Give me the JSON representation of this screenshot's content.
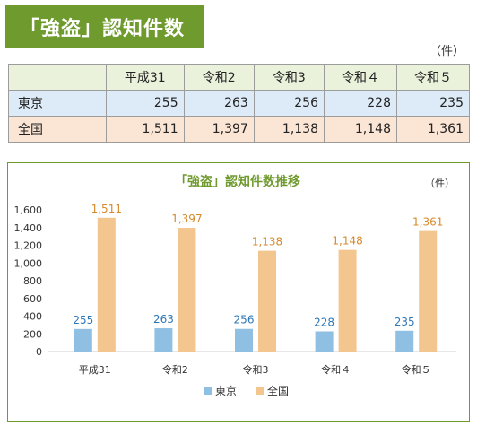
{
  "header": {
    "title": "「強盗」認知件数",
    "unit": "（件）"
  },
  "table": {
    "columns": [
      "平成31",
      "令和2",
      "令和3",
      "令和４",
      "令和５"
    ],
    "rows": [
      {
        "label": "東京",
        "values": [
          "255",
          "263",
          "256",
          "228",
          "235"
        ]
      },
      {
        "label": "全国",
        "values": [
          "1,511",
          "1,397",
          "1,138",
          "1,148",
          "1,361"
        ]
      }
    ]
  },
  "chart_data": {
    "type": "bar",
    "title": "「強盗」認知件数推移",
    "unit": "（件）",
    "categories": [
      "平成31",
      "令和2",
      "令和3",
      "令和４",
      "令和５"
    ],
    "series": [
      {
        "name": "東京",
        "values": [
          255,
          263,
          256,
          228,
          235
        ],
        "labels": [
          "255",
          "263",
          "256",
          "228",
          "235"
        ],
        "color": "#8fc0e3"
      },
      {
        "name": "全国",
        "values": [
          1511,
          1397,
          1138,
          1148,
          1361
        ],
        "labels": [
          "1,511",
          "1,397",
          "1,138",
          "1,148",
          "1,361"
        ],
        "color": "#f3c58f"
      }
    ],
    "ylim": [
      0,
      1600
    ],
    "yticks": [
      "0",
      "200",
      "400",
      "600",
      "800",
      "1,000",
      "1,200",
      "1,400",
      "1,600"
    ],
    "grid": false,
    "legend": "bottom"
  },
  "colors": {
    "accent_green": "#6f9a2e",
    "tokyo_bar": "#8fc0e3",
    "national_bar": "#f3c58f",
    "tokyo_label": "#2f78b7",
    "national_label": "#d68a2c"
  }
}
